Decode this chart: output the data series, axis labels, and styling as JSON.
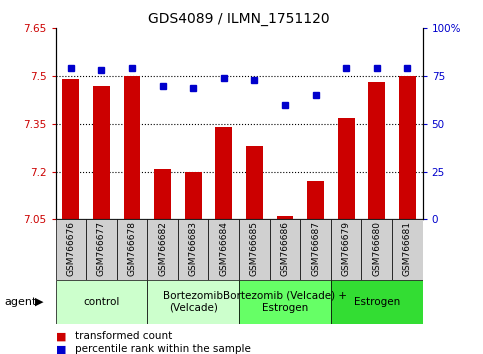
{
  "title": "GDS4089 / ILMN_1751120",
  "samples": [
    "GSM766676",
    "GSM766677",
    "GSM766678",
    "GSM766682",
    "GSM766683",
    "GSM766684",
    "GSM766685",
    "GSM766686",
    "GSM766687",
    "GSM766679",
    "GSM766680",
    "GSM766681"
  ],
  "bar_values": [
    7.49,
    7.47,
    7.5,
    7.21,
    7.2,
    7.34,
    7.28,
    7.06,
    7.17,
    7.37,
    7.48,
    7.5
  ],
  "dot_values": [
    79,
    78,
    79,
    70,
    69,
    74,
    73,
    60,
    65,
    79,
    79,
    79
  ],
  "ylim_left": [
    7.05,
    7.65
  ],
  "ylim_right": [
    0,
    100
  ],
  "yticks_left": [
    7.05,
    7.2,
    7.35,
    7.5,
    7.65
  ],
  "yticks_right": [
    0,
    25,
    50,
    75,
    100
  ],
  "ytick_labels_left": [
    "7.05",
    "7.2",
    "7.35",
    "7.5",
    "7.65"
  ],
  "ytick_labels_right": [
    "0",
    "25",
    "50",
    "75",
    "100%"
  ],
  "bar_color": "#cc0000",
  "dot_color": "#0000cc",
  "bar_bottom": 7.05,
  "hlines": [
    7.2,
    7.35,
    7.5
  ],
  "groups": [
    {
      "label": "control",
      "start": 0,
      "end": 3,
      "color": "#ccffcc"
    },
    {
      "label": "Bortezomib\n(Velcade)",
      "start": 3,
      "end": 6,
      "color": "#ccffcc"
    },
    {
      "label": "Bortezomib (Velcade) +\nEstrogen",
      "start": 6,
      "end": 9,
      "color": "#66ff66"
    },
    {
      "label": "Estrogen",
      "start": 9,
      "end": 12,
      "color": "#33dd33"
    }
  ],
  "agent_label": "agent",
  "legend_bar_label": "transformed count",
  "legend_dot_label": "percentile rank within the sample",
  "title_fontsize": 10,
  "tick_fontsize": 7.5,
  "sample_fontsize": 6.5,
  "group_fontsize": 7.5,
  "legend_fontsize": 7.5
}
